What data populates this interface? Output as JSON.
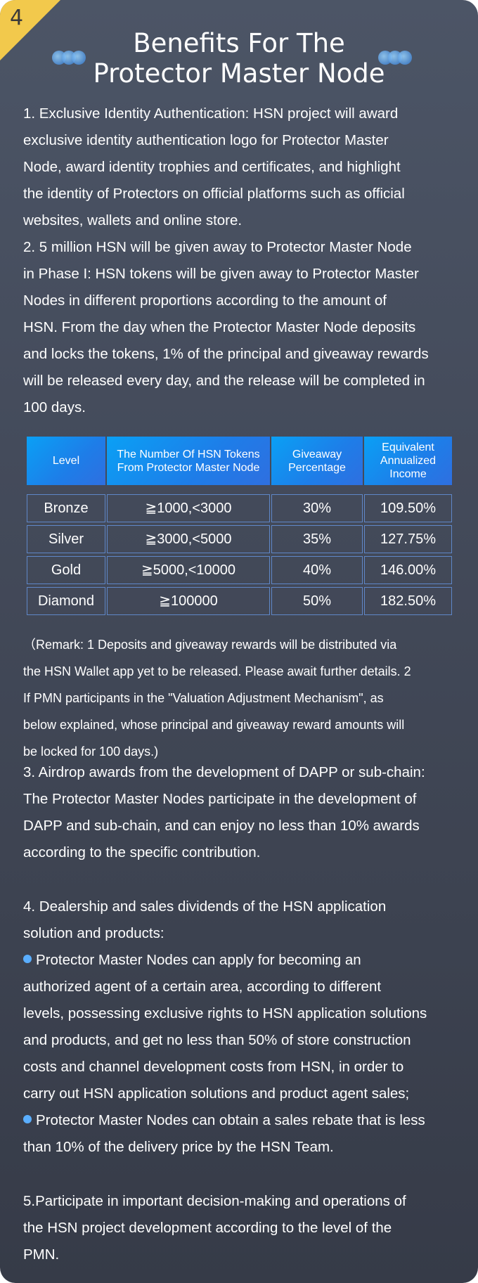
{
  "badge_number": "4",
  "title_line1": "Benefits For The",
  "title_line2": "Protector Master Node",
  "para1": [
    "1. Exclusive Identity Authentication: HSN project will award",
    "exclusive identity authentication logo for Protector Master",
    "Node, award identity trophies and certificates, and highlight",
    "the identity of Protectors on official platforms such as official",
    "websites, wallets and online store."
  ],
  "para2": [
    "2. 5 million HSN will be given away to Protector Master Node",
    "in Phase I: HSN tokens will be given away to Protector Master",
    "Nodes in different proportions according to the amount of",
    "HSN. From the day when the Protector Master Node deposits",
    "and locks the tokens, 1% of the principal and giveaway rewards",
    "will be released every day, and the release will be completed in",
    "100 days."
  ],
  "table": {
    "headers": [
      "Level",
      "The Number Of HSN Tokens From Protector Master Node",
      "Giveaway Percentage",
      "Equivalent Annualized Income"
    ],
    "rows": [
      [
        "Bronze",
        "≧1000,<3000",
        "30%",
        "109.50%"
      ],
      [
        "Silver",
        "≧3000,<5000",
        "35%",
        "127.75%"
      ],
      [
        "Gold",
        "≧5000,<10000",
        "40%",
        "146.00%"
      ],
      [
        "Diamond",
        "≧100000",
        "50%",
        "182.50%"
      ]
    ]
  },
  "remark": [
    "（Remark: 1 Deposits and giveaway rewards will be distributed via",
    "the HSN Wallet app yet to be released. Please await further details. 2",
    "If PMN participants in the \"Valuation Adjustment Mechanism\", as",
    "below explained, whose principal and giveaway reward amounts will",
    "be locked for 100 days.)"
  ],
  "para3": [
    "3. Airdrop awards from the development of DAPP or sub-chain:",
    "The Protector Master Nodes participate in the development of",
    "DAPP and sub-chain, and can enjoy no less than 10% awards",
    "according to the specific contribution."
  ],
  "para4_intro": [
    "4. Dealership and sales dividends of the HSN application",
    "solution and products:"
  ],
  "bullet1": [
    "Protector Master Nodes can apply for becoming an",
    "authorized agent  of a certain area, according to different",
    "levels, possessing exclusive rights to HSN application solutions",
    "and products, and get no less than 50% of store construction",
    "costs and channel development costs from HSN, in order to",
    "carry out HSN application solutions and product agent sales;"
  ],
  "bullet2": [
    "Protector Master Nodes can obtain a sales rebate that is less",
    "than 10% of the delivery price by the HSN Team."
  ],
  "para5": [
    "5.Participate in important decision-making and operations of",
    "the HSN project development according to the level of the",
    "PMN."
  ]
}
